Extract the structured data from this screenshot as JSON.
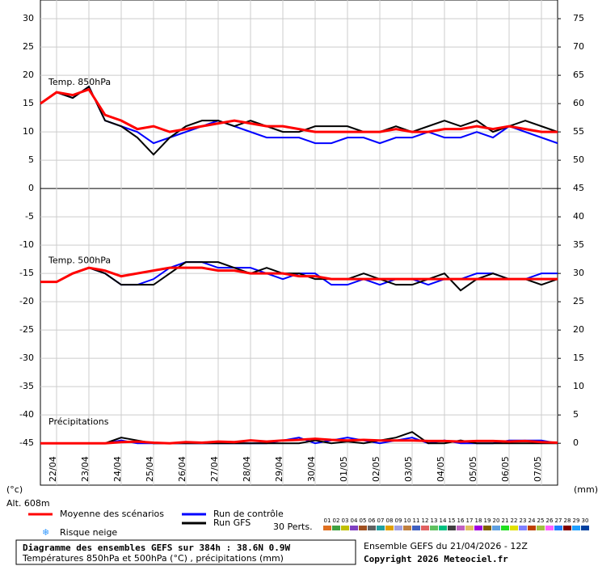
{
  "chart_data": {
    "type": "line",
    "xlim": [
      0,
      384
    ],
    "x": [
      0,
      12,
      24,
      36,
      48,
      60,
      72,
      84,
      96,
      108,
      120,
      132,
      144,
      156,
      168,
      180,
      192,
      204,
      216,
      228,
      240,
      252,
      264,
      276,
      288,
      300,
      312,
      324,
      336,
      348,
      360,
      372,
      384
    ],
    "xticks": [
      {
        "value": 12,
        "label": "22/04"
      },
      {
        "value": 36,
        "label": "23/04"
      },
      {
        "value": 60,
        "label": "24/04"
      },
      {
        "value": 84,
        "label": "25/04"
      },
      {
        "value": 108,
        "label": "26/04"
      },
      {
        "value": 132,
        "label": "27/04"
      },
      {
        "value": 156,
        "label": "28/04"
      },
      {
        "value": 180,
        "label": "29/04"
      },
      {
        "value": 204,
        "label": "30/04"
      },
      {
        "value": 228,
        "label": "01/05"
      },
      {
        "value": 252,
        "label": "02/05"
      },
      {
        "value": 276,
        "label": "03/05"
      },
      {
        "value": 300,
        "label": "04/05"
      },
      {
        "value": 324,
        "label": "05/05"
      },
      {
        "value": 348,
        "label": "06/05"
      },
      {
        "value": 372,
        "label": "07/05"
      }
    ],
    "ylim": [
      -52.4,
      33.3
    ],
    "yticks": [
      30,
      25,
      20,
      15,
      10,
      5,
      0,
      -5,
      -10,
      -15,
      -20,
      -25,
      -30,
      -35,
      -40,
      -45
    ],
    "y2lim": [
      -7.4,
      78.3
    ],
    "y2ticks": [
      75,
      70,
      65,
      60,
      55,
      50,
      45,
      40,
      35,
      30,
      25,
      20,
      15,
      10,
      5,
      0
    ],
    "grid": true,
    "y_unit": "(°c)",
    "y2_unit": "(mm)",
    "altitude": "Alt. 608m",
    "legend": [
      {
        "name": "Moyenne des scénarios",
        "color": "#ff0000"
      },
      {
        "name": "Run de contrôle",
        "color": "#0000ff"
      },
      {
        "name": "Run GFS",
        "color": "#000000"
      }
    ],
    "snow_label": "Risque neige",
    "perturbations_label": "30 Perts.",
    "perturbations": [
      {
        "label": "01",
        "color": "#e07020"
      },
      {
        "label": "02",
        "color": "#40a040"
      },
      {
        "label": "03",
        "color": "#c0c000"
      },
      {
        "label": "04",
        "color": "#8040c0"
      },
      {
        "label": "05",
        "color": "#a05020"
      },
      {
        "label": "06",
        "color": "#606060"
      },
      {
        "label": "07",
        "color": "#20a0a0"
      },
      {
        "label": "08",
        "color": "#e0a000"
      },
      {
        "label": "09",
        "color": "#a0a0e0"
      },
      {
        "label": "10",
        "color": "#c08040"
      },
      {
        "label": "11",
        "color": "#4060c0"
      },
      {
        "label": "12",
        "color": "#e06060"
      },
      {
        "label": "13",
        "color": "#60c060"
      },
      {
        "label": "14",
        "color": "#00c080"
      },
      {
        "label": "15",
        "color": "#404040"
      },
      {
        "label": "16",
        "color": "#c060c0"
      },
      {
        "label": "17",
        "color": "#e0c060"
      },
      {
        "label": "18",
        "color": "#a000e0"
      },
      {
        "label": "19",
        "color": "#806000"
      },
      {
        "label": "20",
        "color": "#60a0e0"
      },
      {
        "label": "21",
        "color": "#20e020"
      },
      {
        "label": "22",
        "color": "#e0e000"
      },
      {
        "label": "23",
        "color": "#8080ff"
      },
      {
        "label": "24",
        "color": "#c04000"
      },
      {
        "label": "25",
        "color": "#a0c040"
      },
      {
        "label": "26",
        "color": "#ff60ff"
      },
      {
        "label": "27",
        "color": "#2080ff"
      },
      {
        "label": "28",
        "color": "#800000"
      },
      {
        "label": "29",
        "color": "#20a0ff"
      },
      {
        "label": "30",
        "color": "#0040a0"
      }
    ],
    "panels": [
      {
        "label": "Temp. 850hPa",
        "axis": "y",
        "series": [
          {
            "color": "#0000ff",
            "values": [
              15,
              17,
              16,
              18,
              12,
              11,
              10,
              8,
              9,
              10,
              11,
              12,
              11,
              10,
              9,
              9,
              9,
              8,
              8,
              9,
              9,
              8,
              9,
              9,
              10,
              9,
              9,
              10,
              9,
              11,
              10,
              9,
              8
            ]
          },
          {
            "color": "#000000",
            "values": [
              15,
              17,
              16,
              18,
              12,
              11,
              9,
              6,
              9,
              11,
              12,
              12,
              11,
              12,
              11,
              10,
              10,
              11,
              11,
              11,
              10,
              10,
              11,
              10,
              11,
              12,
              11,
              12,
              10,
              11,
              12,
              11,
              10
            ]
          },
          {
            "color": "#ff0000",
            "values": [
              15,
              17,
              16.5,
              17.5,
              13,
              12,
              10.5,
              11,
              10,
              10.5,
              11,
              11.5,
              12,
              11.5,
              11,
              11,
              10.5,
              10,
              10,
              10,
              10,
              10,
              10.5,
              10,
              10,
              10.5,
              10.5,
              11,
              10.5,
              11,
              10.5,
              10,
              10
            ]
          }
        ]
      },
      {
        "label": "Temp. 500hPa",
        "axis": "y",
        "series": [
          {
            "color": "#0000ff",
            "values": [
              -16.5,
              -16.5,
              -15,
              -14,
              -15,
              -17,
              -17,
              -16,
              -14,
              -13,
              -13,
              -14,
              -14,
              -14,
              -15,
              -16,
              -15,
              -15,
              -17,
              -17,
              -16,
              -17,
              -16,
              -16,
              -17,
              -16,
              -16,
              -15,
              -15,
              -16,
              -16,
              -15,
              -15
            ]
          },
          {
            "color": "#000000",
            "values": [
              -16.5,
              -16.5,
              -15,
              -14,
              -15,
              -17,
              -17,
              -17,
              -15,
              -13,
              -13,
              -13,
              -14,
              -15,
              -14,
              -15,
              -15,
              -16,
              -16,
              -16,
              -15,
              -16,
              -17,
              -17,
              -16,
              -15,
              -18,
              -16,
              -15,
              -16,
              -16,
              -17,
              -16
            ]
          },
          {
            "color": "#ff0000",
            "values": [
              -16.5,
              -16.5,
              -15,
              -14,
              -14.5,
              -15.5,
              -15,
              -14.5,
              -14,
              -14,
              -14,
              -14.5,
              -14.5,
              -15,
              -15,
              -15,
              -15.5,
              -15.5,
              -16,
              -16,
              -16,
              -16,
              -16,
              -16,
              -16,
              -16,
              -16,
              -16,
              -16,
              -16,
              -16,
              -16,
              -16
            ]
          }
        ]
      },
      {
        "label": "Précipitations",
        "axis": "y2",
        "series": [
          {
            "color": "#0000ff",
            "values": [
              0,
              0,
              0,
              0,
              0,
              0.5,
              0,
              0,
              0,
              0,
              0,
              0,
              0,
              0,
              0,
              0.5,
              1,
              0,
              0.5,
              1,
              0.5,
              0,
              0.5,
              1,
              0,
              0.5,
              0,
              0,
              0,
              0.5,
              0.5,
              0.5,
              0
            ]
          },
          {
            "color": "#000000",
            "values": [
              0,
              0,
              0,
              0,
              0,
              1,
              0.5,
              0,
              0,
              0,
              0,
              0,
              0,
              0,
              0,
              0,
              0,
              0.5,
              0,
              0.3,
              0,
              0.5,
              1,
              2,
              0,
              0,
              0.5,
              0,
              0,
              0,
              0,
              0,
              0
            ]
          },
          {
            "color": "#ff0000",
            "values": [
              0,
              0,
              0,
              0,
              0,
              0.2,
              0.3,
              0.1,
              0,
              0.2,
              0.1,
              0.3,
              0.2,
              0.5,
              0.3,
              0.5,
              0.6,
              0.8,
              0.6,
              0.5,
              0.6,
              0.5,
              0.5,
              0.5,
              0.4,
              0.4,
              0.3,
              0.4,
              0.4,
              0.3,
              0.4,
              0.2,
              0.1
            ]
          }
        ]
      }
    ],
    "title": "Diagramme des ensembles GEFS sur 384h : 38.6N 0.9W",
    "subtitle": "Températures 850hPa et 500hPa (°C) , précipitations (mm)",
    "run_info": "Ensemble GEFS du 21/04/2026 - 12Z",
    "copyright": "Copyright 2026 Meteociel.fr"
  }
}
